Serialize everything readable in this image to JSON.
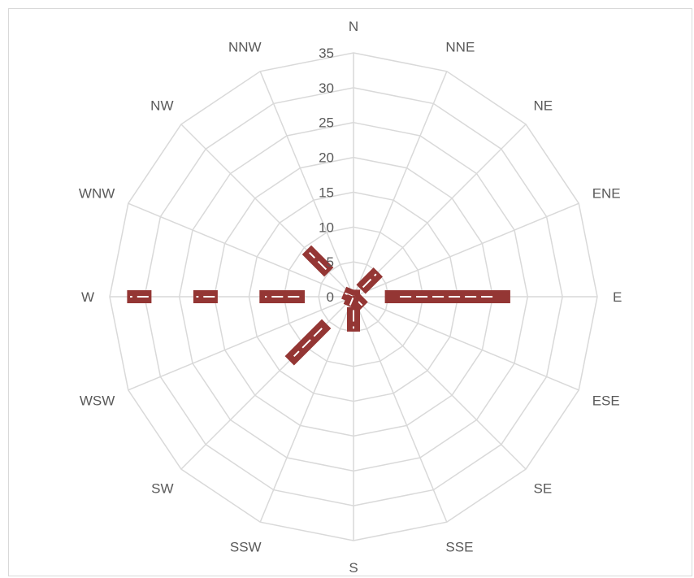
{
  "chart_data": {
    "type": "radar",
    "categories": [
      "N",
      "NNE",
      "NE",
      "ENE",
      "E",
      "ESE",
      "SE",
      "SSE",
      "S",
      "SSW",
      "SW",
      "WSW",
      "W",
      "WNW",
      "NW",
      "NNW"
    ],
    "ticks": [
      "0",
      "5",
      "10",
      "15",
      "20",
      "25",
      "30",
      "35"
    ],
    "rlim": [
      0,
      35
    ],
    "grid": true,
    "series_color": "#943634",
    "grid_color": "#d9d9d9",
    "series": [
      {
        "segments": [
          {
            "direction": "E",
            "from": 4.5,
            "to": 22.5
          },
          {
            "direction": "NE",
            "from": 1.5,
            "to": 5
          },
          {
            "direction": "S",
            "from": 1.5,
            "to": 5
          },
          {
            "direction": "SW",
            "from": 5.5,
            "to": 13
          },
          {
            "direction": "W",
            "from": 7,
            "to": 13.5
          },
          {
            "direction": "W",
            "from": 19.5,
            "to": 23
          },
          {
            "direction": "W",
            "from": 29,
            "to": 32.5
          },
          {
            "direction": "NW",
            "from": 5,
            "to": 9.5
          },
          {
            "direction": "SE",
            "from": 0,
            "to": 2
          },
          {
            "direction": "N",
            "from": 0,
            "to": 1
          },
          {
            "direction": "WNW",
            "from": 0,
            "to": 1.5
          },
          {
            "direction": "SSW",
            "from": 0,
            "to": 1.5
          }
        ]
      }
    ]
  }
}
